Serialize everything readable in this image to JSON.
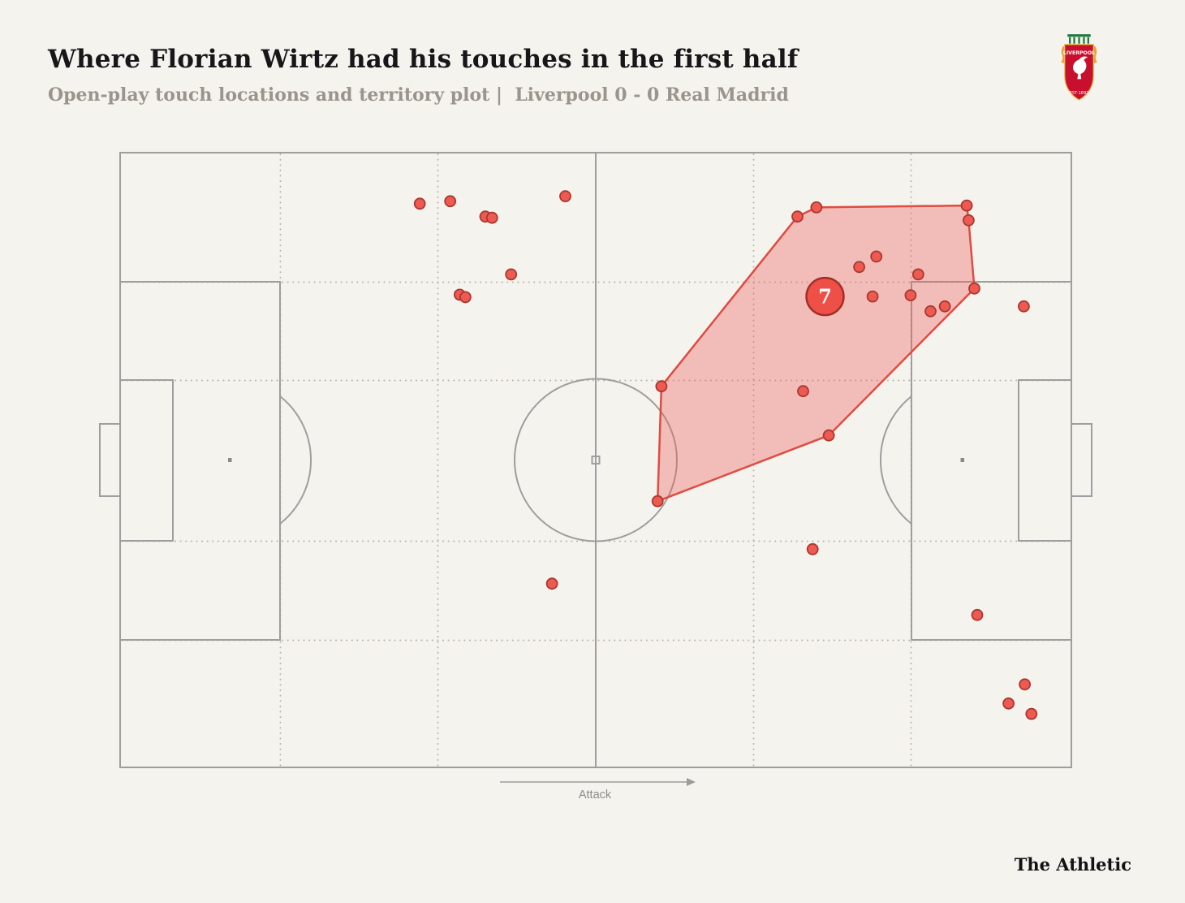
{
  "header": {
    "title": "Where Florian Wirtz had his touches in the first half",
    "subtitle": "Open-play touch locations and territory plot |  Liverpool 0 - 0 Real Madrid"
  },
  "crest": {
    "club": "LIVERPOOL",
    "est": "EST·1892"
  },
  "pitch": {
    "attack_label": "Attack"
  },
  "footer": {
    "brand": "The Athletic"
  },
  "colors": {
    "background": "#f5f3ee",
    "pitch_line": "#9e9e9e",
    "dotted_line": "#b8b4aa",
    "dot_fill": "#ee5a52",
    "dot_stroke": "#a83830",
    "territory_fill": "#ee5a52",
    "territory_fill_opacity": 0.35,
    "territory_stroke": "#e04b42",
    "marker_fill": "#ee4f47",
    "marker_stroke": "#9e2f28",
    "marker_number_color": "#ffffff",
    "liverpool_red": "#c8102e"
  },
  "chart_data": {
    "type": "scatter",
    "title": "Where Florian Wirtz had his touches in the first half",
    "subtitle": "Open-play touch locations and territory plot | Liverpool 0 - 0 Real Madrid",
    "player": {
      "name": "Florian Wirtz",
      "shirt_number": "7",
      "team": "Liverpool"
    },
    "score": "Liverpool 0 - 0 Real Madrid",
    "coordinate_system": "percent of pitch; x: 0 = own goal line, 100 = attacking goal line (attack points right); y: 0 = top touchline, 100 = bottom touchline",
    "touches": [
      [
        31.5,
        8.3
      ],
      [
        34.7,
        7.9
      ],
      [
        38.4,
        10.4
      ],
      [
        39.1,
        10.6
      ],
      [
        46.8,
        7.1
      ],
      [
        41.1,
        19.8
      ],
      [
        35.7,
        23.1
      ],
      [
        36.3,
        23.5
      ],
      [
        71.2,
        10.4
      ],
      [
        73.2,
        8.9
      ],
      [
        89.0,
        8.6
      ],
      [
        89.2,
        11.0
      ],
      [
        79.5,
        16.9
      ],
      [
        77.7,
        18.6
      ],
      [
        83.9,
        19.8
      ],
      [
        79.1,
        23.4
      ],
      [
        83.1,
        23.2
      ],
      [
        89.8,
        22.1
      ],
      [
        85.2,
        25.8
      ],
      [
        86.7,
        25.0
      ],
      [
        95.0,
        25.0
      ],
      [
        56.9,
        38.0
      ],
      [
        71.8,
        38.8
      ],
      [
        74.5,
        46.0
      ],
      [
        56.5,
        56.7
      ],
      [
        72.8,
        64.5
      ],
      [
        45.4,
        70.1
      ],
      [
        90.1,
        75.2
      ],
      [
        95.1,
        86.5
      ],
      [
        93.4,
        89.6
      ],
      [
        95.8,
        91.3
      ]
    ],
    "territory_hull": [
      [
        56.5,
        56.7
      ],
      [
        56.9,
        38.0
      ],
      [
        71.2,
        10.4
      ],
      [
        73.2,
        8.9
      ],
      [
        89.0,
        8.6
      ],
      [
        89.2,
        11.0
      ],
      [
        89.8,
        22.1
      ],
      [
        74.5,
        46.0
      ]
    ],
    "territory_marker": {
      "x": 74.1,
      "y": 23.4,
      "label": "7"
    },
    "legend_position": "none",
    "grid": "dotted thirds/zone grid"
  }
}
